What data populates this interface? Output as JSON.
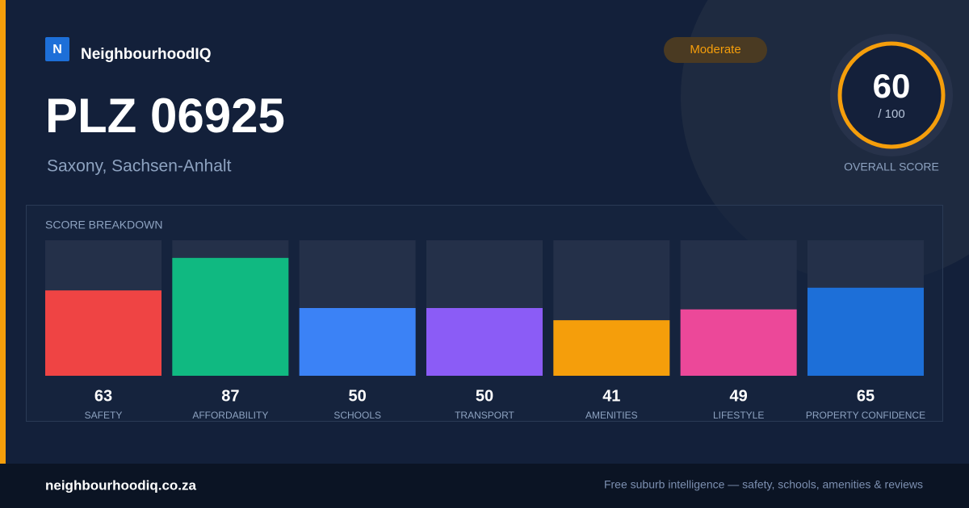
{
  "brand": {
    "logo_letter": "N",
    "name": "NeighbourhoodIQ"
  },
  "header": {
    "title": "PLZ 06925",
    "subtitle": "Saxony, Sachsen-Anhalt",
    "badge": "Moderate"
  },
  "overall": {
    "score": 60,
    "max_label": "/ 100",
    "label": "OVERALL SCORE"
  },
  "chart_data": {
    "type": "bar",
    "title": "SCORE BREAKDOWN",
    "categories": [
      "SAFETY",
      "AFFORDABILITY",
      "SCHOOLS",
      "TRANSPORT",
      "AMENITIES",
      "LIFESTYLE",
      "PROPERTY CONFIDENCE"
    ],
    "values": [
      63,
      87,
      50,
      50,
      41,
      49,
      65
    ],
    "colors": [
      "#ef4444",
      "#10b981",
      "#3b82f6",
      "#8b5cf6",
      "#f59e0b",
      "#ec4899",
      "#1d6fd8"
    ],
    "ylim": [
      0,
      100
    ]
  },
  "footer": {
    "site": "neighbourhoodiq.co.za",
    "tagline": "Free suburb intelligence — safety, schools, amenities & reviews"
  }
}
